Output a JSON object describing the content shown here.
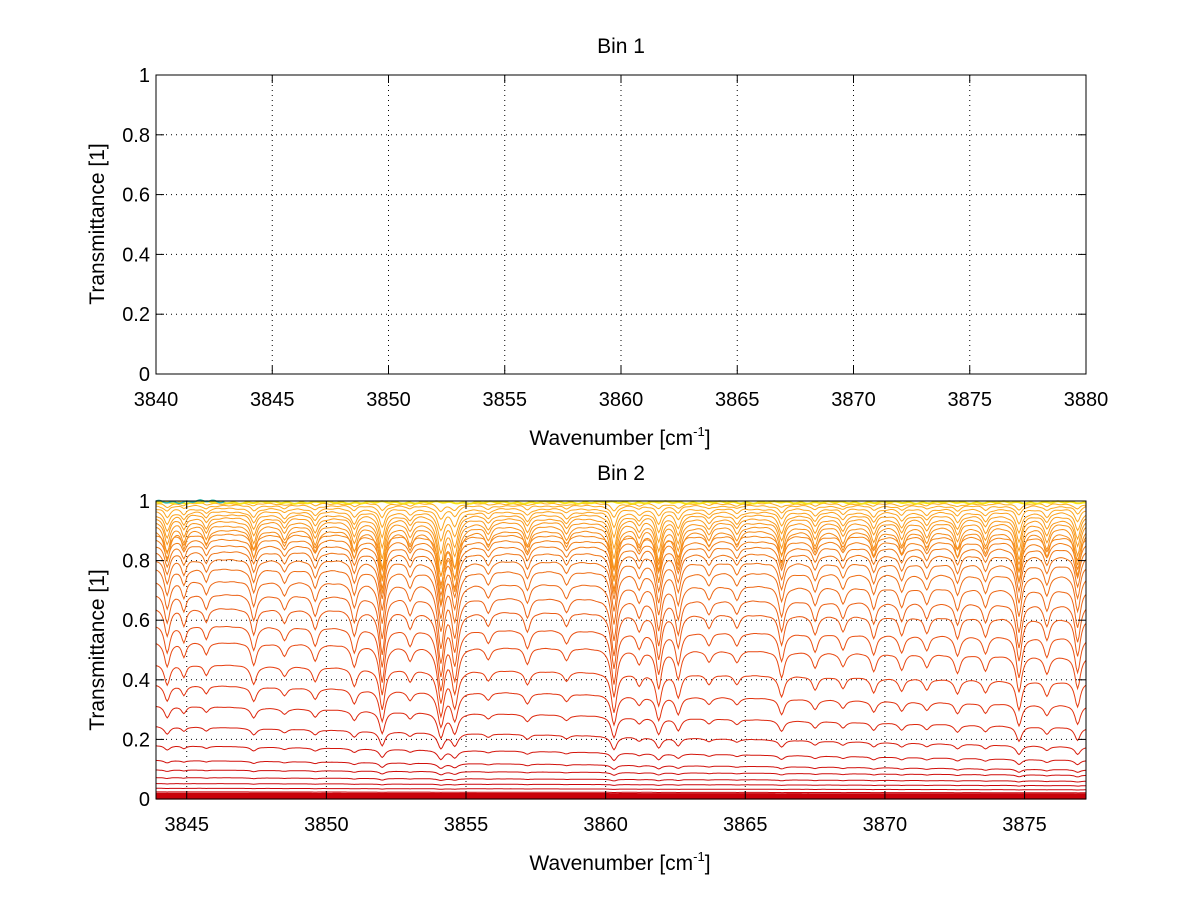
{
  "chart_data": [
    {
      "type": "line",
      "title": "Bin 1",
      "xlabel": "Wavenumber [cm",
      "xlabel_sup": "-1",
      "xlabel_close": "]",
      "ylabel": "Transmittance [1]",
      "xlim": [
        3840,
        3880
      ],
      "ylim": [
        0,
        1
      ],
      "xticks": [
        3840,
        3845,
        3850,
        3855,
        3860,
        3865,
        3870,
        3875,
        3880
      ],
      "yticks": [
        0,
        0.2,
        0.4,
        0.6,
        0.8,
        1
      ],
      "ytick_labels": [
        "0",
        "0.2",
        "0.4",
        "0.6",
        "0.8",
        "1"
      ],
      "grid": true,
      "series": []
    },
    {
      "type": "line",
      "title": "Bin 2",
      "xlabel": "Wavenumber [cm",
      "xlabel_sup": "-1",
      "xlabel_close": "]",
      "ylabel": "Transmittance [1]",
      "xlim": [
        3843.9,
        3877.2
      ],
      "ylim": [
        0,
        1
      ],
      "xticks": [
        3845,
        3850,
        3855,
        3860,
        3865,
        3870,
        3875
      ],
      "yticks": [
        0,
        0.2,
        0.4,
        0.6,
        0.8,
        1
      ],
      "ytick_labels": [
        "0",
        "0.2",
        "0.4",
        "0.6",
        "0.8",
        "1"
      ],
      "grid": true,
      "series_description": "Family of transmittance spectra; each curve is a baseline level (left end, right end) with absorption lines scaled by depth",
      "baselines": [
        [
          0.992,
          0.99
        ],
        [
          0.985,
          0.983
        ],
        [
          0.975,
          0.973
        ],
        [
          0.965,
          0.962
        ],
        [
          0.955,
          0.951
        ],
        [
          0.944,
          0.939
        ],
        [
          0.932,
          0.927
        ],
        [
          0.919,
          0.913
        ],
        [
          0.905,
          0.898
        ],
        [
          0.889,
          0.88
        ],
        [
          0.872,
          0.862
        ],
        [
          0.853,
          0.842
        ],
        [
          0.832,
          0.818
        ],
        [
          0.806,
          0.788
        ],
        [
          0.775,
          0.752
        ],
        [
          0.735,
          0.705
        ],
        [
          0.69,
          0.655
        ],
        [
          0.643,
          0.608
        ],
        [
          0.585,
          0.545
        ],
        [
          0.53,
          0.48
        ],
        [
          0.455,
          0.395
        ],
        [
          0.385,
          0.315
        ],
        [
          0.315,
          0.24
        ],
        [
          0.245,
          0.175
        ],
        [
          0.18,
          0.13
        ],
        [
          0.13,
          0.098
        ],
        [
          0.098,
          0.08
        ],
        [
          0.072,
          0.06
        ],
        [
          0.052,
          0.045
        ],
        [
          0.036,
          0.031
        ],
        [
          0.024,
          0.021
        ],
        [
          0.016,
          0.014
        ],
        [
          0.01,
          0.008
        ],
        [
          0.006,
          0.005
        ],
        [
          0.003,
          0.003
        ]
      ],
      "absorption_lines": [
        {
          "center": 3844.3,
          "depth": 0.1,
          "width": 0.12
        },
        {
          "center": 3844.9,
          "depth": 0.06,
          "width": 0.1
        },
        {
          "center": 3845.7,
          "depth": 0.05,
          "width": 0.1
        },
        {
          "center": 3847.4,
          "depth": 0.09,
          "width": 0.12
        },
        {
          "center": 3848.5,
          "depth": 0.05,
          "width": 0.12
        },
        {
          "center": 3849.6,
          "depth": 0.07,
          "width": 0.12
        },
        {
          "center": 3851.0,
          "depth": 0.09,
          "width": 0.12
        },
        {
          "center": 3852.0,
          "depth": 0.2,
          "width": 0.12
        },
        {
          "center": 3853.0,
          "depth": 0.06,
          "width": 0.12
        },
        {
          "center": 3854.1,
          "depth": 0.22,
          "width": 0.14
        },
        {
          "center": 3854.6,
          "depth": 0.18,
          "width": 0.14
        },
        {
          "center": 3855.8,
          "depth": 0.05,
          "width": 0.12
        },
        {
          "center": 3857.2,
          "depth": 0.07,
          "width": 0.12
        },
        {
          "center": 3858.6,
          "depth": 0.05,
          "width": 0.12
        },
        {
          "center": 3860.3,
          "depth": 0.2,
          "width": 0.12
        },
        {
          "center": 3861.2,
          "depth": 0.06,
          "width": 0.12
        },
        {
          "center": 3861.9,
          "depth": 0.16,
          "width": 0.12
        },
        {
          "center": 3862.6,
          "depth": 0.12,
          "width": 0.12
        },
        {
          "center": 3863.7,
          "depth": 0.05,
          "width": 0.12
        },
        {
          "center": 3864.7,
          "depth": 0.05,
          "width": 0.12
        },
        {
          "center": 3866.3,
          "depth": 0.11,
          "width": 0.12
        },
        {
          "center": 3867.5,
          "depth": 0.07,
          "width": 0.12
        },
        {
          "center": 3868.5,
          "depth": 0.06,
          "width": 0.12
        },
        {
          "center": 3869.6,
          "depth": 0.08,
          "width": 0.12
        },
        {
          "center": 3870.6,
          "depth": 0.07,
          "width": 0.12
        },
        {
          "center": 3871.5,
          "depth": 0.06,
          "width": 0.12
        },
        {
          "center": 3872.6,
          "depth": 0.08,
          "width": 0.12
        },
        {
          "center": 3873.6,
          "depth": 0.07,
          "width": 0.12
        },
        {
          "center": 3874.8,
          "depth": 0.16,
          "width": 0.12
        },
        {
          "center": 3875.8,
          "depth": 0.08,
          "width": 0.12
        },
        {
          "center": 3876.9,
          "depth": 0.14,
          "width": 0.12
        }
      ],
      "colors": {
        "low": "#c8000a",
        "mid": "#e63a10",
        "high": "#f07a18",
        "top": "#ffb020",
        "accent": "#f5e31a",
        "accent2": "#2fb3a8"
      }
    }
  ]
}
